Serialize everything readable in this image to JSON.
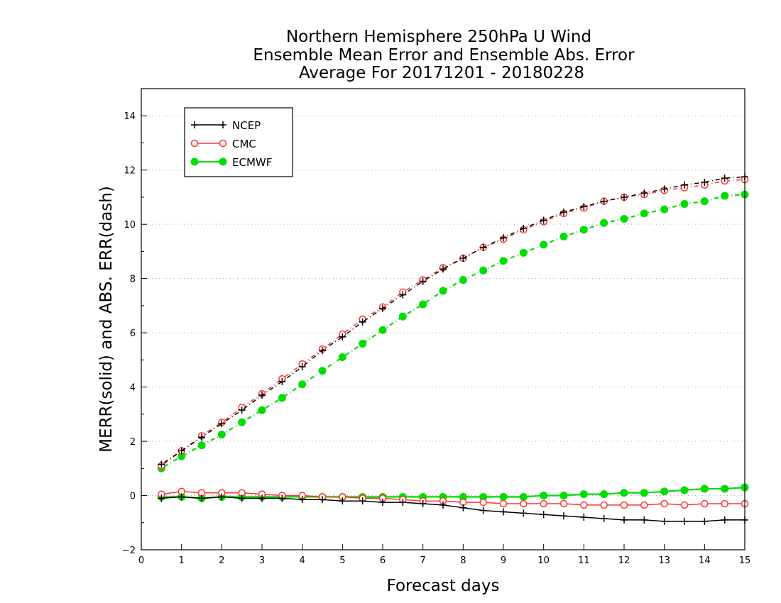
{
  "chart_data": {
    "type": "line",
    "title": [
      "Northern Hemisphere 250hPa U Wind",
      "Ensemble Mean Error and Ensemble Abs. Error",
      "Average For 20171201 - 20180228"
    ],
    "xlabel": "Forecast days",
    "ylabel": "MERR(solid) and ABS. ERR(dash)",
    "xlim": [
      0,
      15
    ],
    "ylim": [
      -2,
      15
    ],
    "xticks": [
      0,
      1,
      2,
      3,
      4,
      5,
      6,
      7,
      8,
      9,
      10,
      11,
      12,
      13,
      14,
      15
    ],
    "yticks": [
      -2,
      0,
      2,
      4,
      6,
      8,
      10,
      12,
      14
    ],
    "grid": "horizontal dotted",
    "legend_position": "top-left",
    "x": [
      0.5,
      1,
      1.5,
      2,
      2.5,
      3,
      3.5,
      4,
      4.5,
      5,
      5.5,
      6,
      6.5,
      7,
      7.5,
      8,
      8.5,
      9,
      9.5,
      10,
      10.5,
      11,
      11.5,
      12,
      12.5,
      13,
      13.5,
      14,
      14.5,
      15
    ],
    "series": [
      {
        "name": "NCEP",
        "color": "#000000",
        "marker": "plus",
        "merr": [
          -0.1,
          -0.05,
          -0.1,
          -0.05,
          -0.1,
          -0.1,
          -0.1,
          -0.15,
          -0.15,
          -0.2,
          -0.2,
          -0.25,
          -0.25,
          -0.3,
          -0.35,
          -0.45,
          -0.55,
          -0.6,
          -0.65,
          -0.7,
          -0.75,
          -0.8,
          -0.85,
          -0.9,
          -0.9,
          -0.95,
          -0.95,
          -0.95,
          -0.9,
          -0.9
        ],
        "abserr": [
          1.15,
          1.65,
          2.15,
          2.65,
          3.15,
          3.7,
          4.2,
          4.75,
          5.35,
          5.85,
          6.4,
          6.9,
          7.4,
          7.9,
          8.35,
          8.75,
          9.15,
          9.5,
          9.85,
          10.15,
          10.45,
          10.65,
          10.85,
          11.0,
          11.15,
          11.3,
          11.45,
          11.55,
          11.7,
          11.75
        ]
      },
      {
        "name": "CMC",
        "color": "#ff3333",
        "marker": "open-circle",
        "merr": [
          0.05,
          0.15,
          0.1,
          0.1,
          0.1,
          0.05,
          0.0,
          0.0,
          -0.05,
          -0.05,
          -0.1,
          -0.1,
          -0.15,
          -0.2,
          -0.2,
          -0.25,
          -0.25,
          -0.3,
          -0.3,
          -0.3,
          -0.3,
          -0.35,
          -0.35,
          -0.35,
          -0.35,
          -0.3,
          -0.35,
          -0.3,
          -0.3,
          -0.3
        ],
        "abserr": [
          1.1,
          1.65,
          2.2,
          2.7,
          3.25,
          3.75,
          4.3,
          4.85,
          5.4,
          5.95,
          6.5,
          6.95,
          7.5,
          7.95,
          8.4,
          8.75,
          9.15,
          9.45,
          9.8,
          10.1,
          10.4,
          10.6,
          10.85,
          11.0,
          11.1,
          11.25,
          11.35,
          11.45,
          11.6,
          11.65
        ]
      },
      {
        "name": "ECMWF",
        "color": "#00dd00",
        "marker": "filled-circle",
        "merr": [
          -0.05,
          -0.05,
          -0.1,
          -0.05,
          -0.05,
          -0.05,
          -0.05,
          -0.05,
          -0.05,
          -0.05,
          -0.05,
          -0.05,
          -0.05,
          -0.05,
          -0.05,
          -0.05,
          -0.05,
          -0.05,
          -0.05,
          0.0,
          0.0,
          0.05,
          0.05,
          0.1,
          0.1,
          0.15,
          0.2,
          0.25,
          0.25,
          0.3
        ],
        "abserr": [
          1.0,
          1.45,
          1.85,
          2.25,
          2.7,
          3.15,
          3.6,
          4.1,
          4.6,
          5.1,
          5.6,
          6.1,
          6.6,
          7.05,
          7.55,
          7.95,
          8.3,
          8.65,
          8.95,
          9.25,
          9.55,
          9.8,
          10.05,
          10.2,
          10.4,
          10.55,
          10.75,
          10.85,
          11.05,
          11.1
        ]
      }
    ]
  }
}
